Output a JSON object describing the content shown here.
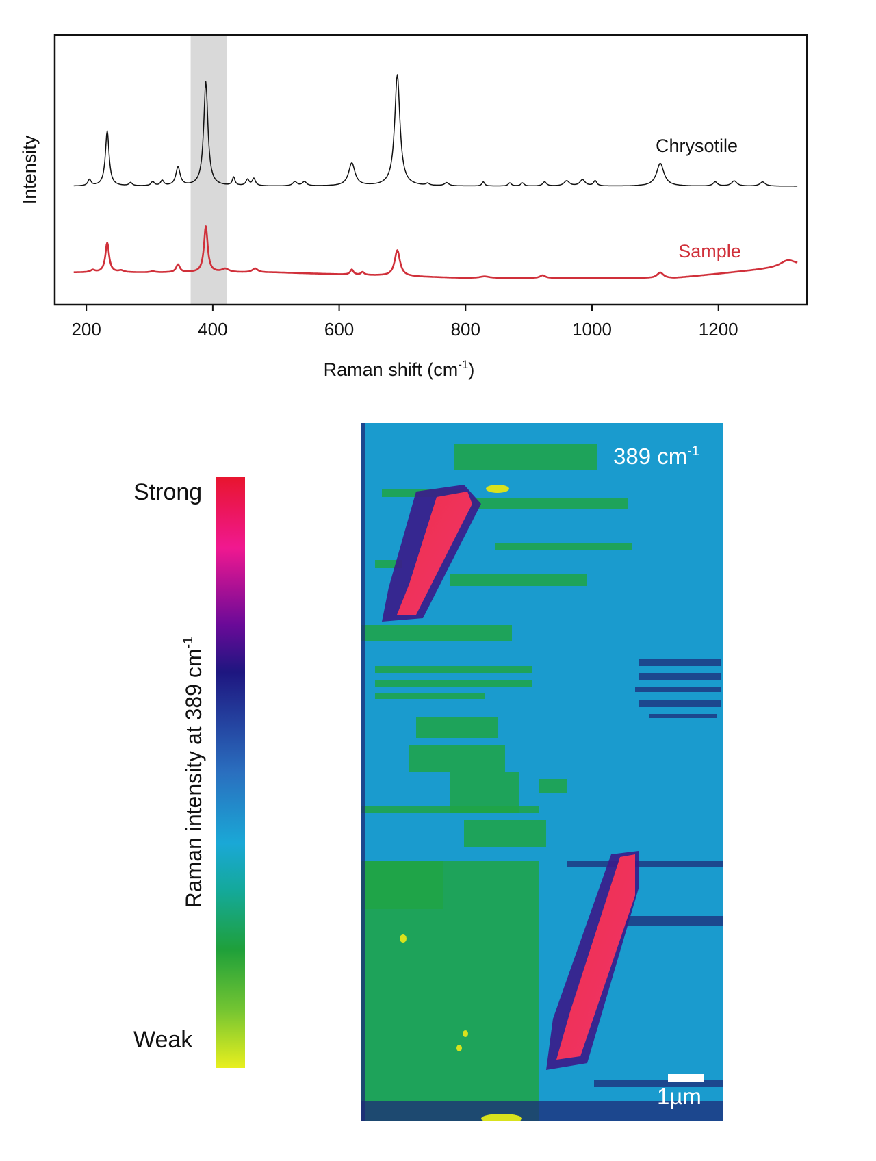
{
  "chart_data": [
    {
      "type": "line",
      "xlabel": "Raman shift (cm",
      "xlabel_sup": "-1",
      "xlabel_close": ")",
      "ylabel": "Intensity",
      "xlim": [
        150,
        1340
      ],
      "x_ticks": [
        200,
        400,
        600,
        800,
        1000,
        1200
      ],
      "x_tick_labels": [
        "200",
        "400",
        "600",
        "800",
        "1000",
        "1200"
      ],
      "highlight_band": [
        365,
        422
      ],
      "highlight_color": "#d9d9d9",
      "series": [
        {
          "name": "Chrysotile",
          "color": "#111111",
          "baseline": 0.0,
          "peaks": [
            {
              "x": 205,
              "h": 0.06,
              "w": 6
            },
            {
              "x": 233,
              "h": 0.53,
              "w": 7
            },
            {
              "x": 270,
              "h": 0.03,
              "w": 6
            },
            {
              "x": 305,
              "h": 0.04,
              "w": 6
            },
            {
              "x": 320,
              "h": 0.05,
              "w": 6
            },
            {
              "x": 345,
              "h": 0.18,
              "w": 8
            },
            {
              "x": 389,
              "h": 1.0,
              "w": 8
            },
            {
              "x": 433,
              "h": 0.08,
              "w": 5
            },
            {
              "x": 455,
              "h": 0.06,
              "w": 6
            },
            {
              "x": 465,
              "h": 0.07,
              "w": 6
            },
            {
              "x": 530,
              "h": 0.04,
              "w": 8
            },
            {
              "x": 545,
              "h": 0.04,
              "w": 8
            },
            {
              "x": 620,
              "h": 0.22,
              "w": 12
            },
            {
              "x": 692,
              "h": 1.07,
              "w": 10
            },
            {
              "x": 740,
              "h": 0.02,
              "w": 6
            },
            {
              "x": 770,
              "h": 0.03,
              "w": 8
            },
            {
              "x": 828,
              "h": 0.04,
              "w": 5
            },
            {
              "x": 870,
              "h": 0.03,
              "w": 6
            },
            {
              "x": 890,
              "h": 0.03,
              "w": 6
            },
            {
              "x": 925,
              "h": 0.04,
              "w": 7
            },
            {
              "x": 960,
              "h": 0.05,
              "w": 10
            },
            {
              "x": 985,
              "h": 0.06,
              "w": 10
            },
            {
              "x": 1005,
              "h": 0.05,
              "w": 6
            },
            {
              "x": 1108,
              "h": 0.22,
              "w": 14
            },
            {
              "x": 1195,
              "h": 0.04,
              "w": 8
            },
            {
              "x": 1225,
              "h": 0.05,
              "w": 10
            },
            {
              "x": 1270,
              "h": 0.04,
              "w": 10
            }
          ]
        },
        {
          "name": "Sample",
          "color": "#d0303a",
          "baseline": 0.0,
          "peaks": [
            {
              "x": 210,
              "h": 0.04,
              "w": 8
            },
            {
              "x": 233,
              "h": 0.53,
              "w": 7
            },
            {
              "x": 255,
              "h": 0.03,
              "w": 10
            },
            {
              "x": 305,
              "h": 0.02,
              "w": 8
            },
            {
              "x": 345,
              "h": 0.14,
              "w": 7
            },
            {
              "x": 389,
              "h": 0.82,
              "w": 7
            },
            {
              "x": 420,
              "h": 0.06,
              "w": 14
            },
            {
              "x": 467,
              "h": 0.07,
              "w": 10
            },
            {
              "x": 620,
              "h": 0.09,
              "w": 6
            },
            {
              "x": 637,
              "h": 0.05,
              "w": 6
            },
            {
              "x": 692,
              "h": 0.46,
              "w": 10
            },
            {
              "x": 830,
              "h": 0.03,
              "w": 18
            },
            {
              "x": 922,
              "h": 0.05,
              "w": 10
            },
            {
              "x": 1108,
              "h": 0.1,
              "w": 12
            },
            {
              "x": 1310,
              "h": 0.12,
              "w": 30
            }
          ]
        }
      ]
    },
    {
      "type": "heatmap",
      "label": "389 cm",
      "label_sup": "-1",
      "scalebar": "1µm",
      "colorbar": {
        "title": "Raman intensity at 389 cm",
        "title_sup": "-1",
        "high_label": "Strong",
        "low_label": "Weak",
        "stops": [
          {
            "offset": 0.0,
            "color": "#e8152f"
          },
          {
            "offset": 0.12,
            "color": "#f01890"
          },
          {
            "offset": 0.25,
            "color": "#6a0a98"
          },
          {
            "offset": 0.33,
            "color": "#1e1680"
          },
          {
            "offset": 0.5,
            "color": "#2a6fbf"
          },
          {
            "offset": 0.62,
            "color": "#1aa8d6"
          },
          {
            "offset": 0.7,
            "color": "#14a99a"
          },
          {
            "offset": 0.8,
            "color": "#1fa03a"
          },
          {
            "offset": 0.9,
            "color": "#72c432"
          },
          {
            "offset": 1.0,
            "color": "#e8ef1e"
          }
        ]
      },
      "background_color": "#1a9bce",
      "green_color": "#20a545",
      "dark_color": "#1d2b78",
      "hot_color": "#ee2f4a",
      "hot_edge_color": "#c21e8a",
      "yellow_color": "#d9e21d"
    }
  ]
}
